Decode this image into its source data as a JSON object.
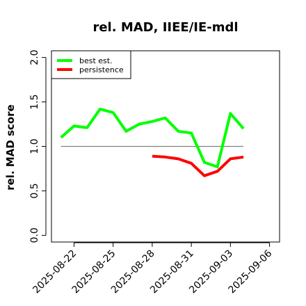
{
  "chart_data": {
    "type": "line",
    "title": "rel. MAD, IIEE/IE-mdl",
    "ylabel": "rel. MAD score",
    "xlabel": "",
    "ylim": [
      0.0,
      2.0
    ],
    "yticks": [
      0.0,
      0.5,
      1.0,
      1.5,
      2.0
    ],
    "ytick_labels": [
      "0.0",
      "0.5",
      "1.0",
      "1.5",
      "2.0"
    ],
    "xlim": [
      "2025-08-20",
      "2025-09-07"
    ],
    "xticks": [
      "2025-08-22",
      "2025-08-25",
      "2025-08-28",
      "2025-08-31",
      "2025-09-03",
      "2025-09-06"
    ],
    "reference_line": {
      "y": 1.0,
      "from": "2025-08-21",
      "to": "2025-09-04",
      "color": "#808080"
    },
    "legend_position": "top-left",
    "series": [
      {
        "name": "best est.",
        "color": "#00ff00",
        "points": [
          [
            "2025-08-21",
            1.1
          ],
          [
            "2025-08-22",
            1.23
          ],
          [
            "2025-08-23",
            1.21
          ],
          [
            "2025-08-24",
            1.42
          ],
          [
            "2025-08-25",
            1.38
          ],
          [
            "2025-08-26",
            1.17
          ],
          [
            "2025-08-27",
            1.25
          ],
          [
            "2025-08-28",
            1.28
          ],
          [
            "2025-08-29",
            1.32
          ],
          [
            "2025-08-30",
            1.17
          ],
          [
            "2025-08-31",
            1.15
          ],
          [
            "2025-09-01",
            0.82
          ],
          [
            "2025-09-02",
            0.77
          ],
          [
            "2025-09-03",
            1.37
          ],
          [
            "2025-09-04",
            1.2
          ]
        ]
      },
      {
        "name": "persistence",
        "color": "#ff0000",
        "points": [
          [
            "2025-08-28",
            0.89
          ],
          [
            "2025-08-29",
            0.88
          ],
          [
            "2025-08-30",
            0.86
          ],
          [
            "2025-08-31",
            0.81
          ],
          [
            "2025-09-01",
            0.67
          ],
          [
            "2025-09-02",
            0.72
          ],
          [
            "2025-09-03",
            0.86
          ],
          [
            "2025-09-04",
            0.88
          ]
        ]
      }
    ]
  }
}
